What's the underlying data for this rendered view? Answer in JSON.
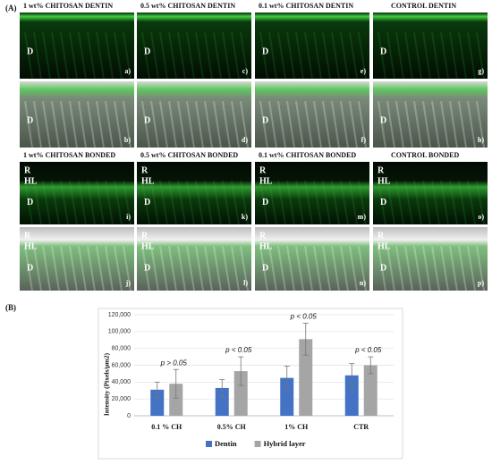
{
  "panel_a": {
    "label": "(A)",
    "titles": [
      "1 wt% CHITOSAN DENTIN",
      "0.5 wt% CHITOSAN DENTIN",
      "0.1 wt% CHITOSAN DENTIN",
      "CONTROL DENTIN",
      "1 wt% CHITOSAN BONDED",
      "0.5 wt% CHITOSAN BONDED",
      "0.1 wt% CHITOSAN BONDED",
      "CONTROL BONDED"
    ],
    "images": [
      {
        "labels": [
          "D"
        ],
        "tag": "a)"
      },
      {
        "labels": [
          "D"
        ],
        "tag": "c)"
      },
      {
        "labels": [
          "D"
        ],
        "tag": "e)"
      },
      {
        "labels": [
          "D"
        ],
        "tag": "g)"
      },
      {
        "labels": [
          "D"
        ],
        "tag": "b)"
      },
      {
        "labels": [
          "D"
        ],
        "tag": "d)"
      },
      {
        "labels": [
          "D"
        ],
        "tag": "f)"
      },
      {
        "labels": [
          "D"
        ],
        "tag": "h)"
      },
      {
        "labels": [
          "R",
          "HL",
          "D"
        ],
        "tag": "i)"
      },
      {
        "labels": [
          "R",
          "HL",
          "D"
        ],
        "tag": "k)"
      },
      {
        "labels": [
          "R",
          "HL",
          "D"
        ],
        "tag": "m)"
      },
      {
        "labels": [
          "R",
          "HL",
          "D"
        ],
        "tag": "o)"
      },
      {
        "labels": [
          "R",
          "HL",
          "D"
        ],
        "tag": "j)"
      },
      {
        "labels": [
          "R",
          "HL",
          "D"
        ],
        "tag": "l)"
      },
      {
        "labels": [
          "R",
          "HL",
          "D"
        ],
        "tag": "n)"
      },
      {
        "labels": [
          "R",
          "HL",
          "D"
        ],
        "tag": "p)"
      }
    ]
  },
  "chart_data": {
    "type": "bar",
    "panel_label": "(B)",
    "y_label": "Intensity (Pixels/μm2)",
    "categories": [
      "0.1 % CH",
      "0.5% CH",
      "1% CH",
      "CTR"
    ],
    "series": [
      {
        "name": "Dentin",
        "color": "#4472c4",
        "values": [
          31000,
          33000,
          45000,
          48000
        ],
        "errors": [
          9000,
          10000,
          14000,
          14000
        ]
      },
      {
        "name": "Hybrid layer",
        "color": "#a5a5a5",
        "values": [
          38000,
          53000,
          91000,
          60000
        ],
        "errors": [
          17000,
          17000,
          19000,
          10000
        ]
      }
    ],
    "annotations": [
      "p > 0.05",
      "p < 0.05",
      "p < 0.05",
      "p < 0.05"
    ],
    "ylim": [
      0,
      120000
    ],
    "yticks": [
      0,
      {
        "value": 20000,
        "label": "20,000"
      },
      {
        "value": 40000,
        "label": "40,000"
      },
      {
        "value": 60000,
        "label": "60,000"
      },
      {
        "value": 80000,
        "label": "80,000"
      },
      {
        "value": 100000,
        "label": "100,000"
      },
      {
        "value": 120000,
        "label": "120,000"
      }
    ],
    "grid": true,
    "legend": "bottom"
  }
}
